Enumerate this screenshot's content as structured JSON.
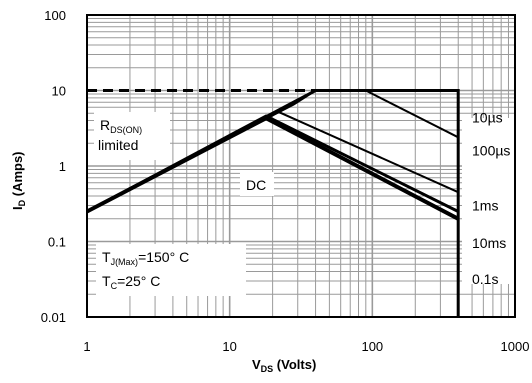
{
  "chart_data": {
    "type": "line",
    "title": "",
    "x_scale": "log",
    "y_scale": "log",
    "xlim": [
      1,
      1000
    ],
    "ylim": [
      0.01,
      100
    ],
    "grid": true,
    "x_ticks": [
      "1",
      "10",
      "100",
      "1000"
    ],
    "y_ticks": [
      "100",
      "10",
      "1",
      "0.1",
      "0.01"
    ],
    "xlabel": {
      "main": "V",
      "sub": "DS",
      "rest": " (Volts)"
    },
    "ylabel": {
      "main": "I",
      "sub": "D",
      "rest": " (Amps)"
    },
    "series": [
      {
        "name": "10µs",
        "x": [
          1,
          40,
          400,
          400
        ],
        "y": [
          0.25,
          10,
          10,
          0.01
        ]
      },
      {
        "name": "100µs",
        "x": [
          1,
          28,
          40,
          90,
          400
        ],
        "y": [
          0.25,
          6.5,
          10,
          10,
          2.4
        ]
      },
      {
        "name": "1ms",
        "x": [
          1,
          22,
          400
        ],
        "y": [
          0.25,
          5.2,
          0.45
        ]
      },
      {
        "name": "10ms",
        "x": [
          1,
          18,
          400
        ],
        "y": [
          0.25,
          4.6,
          0.25
        ]
      },
      {
        "name": "DC",
        "x": [
          1,
          18,
          400
        ],
        "y": [
          0.25,
          4.3,
          0.2
        ]
      }
    ],
    "current_limit": {
      "x": [
        1,
        40
      ],
      "y": [
        10,
        10
      ],
      "style": "dashed"
    },
    "annotations": {
      "rds_line1_main": "R",
      "rds_line1_sub": "DS(ON)",
      "rds_line2": "limited",
      "dc_label": "DC",
      "tj_main": "T",
      "tj_sub": "J(Max)",
      "tj_value": "=150° C",
      "tc_main": "T",
      "tc_sub": "C",
      "tc_value": "=25° C"
    },
    "legend_labels": [
      {
        "text": "10µs",
        "y": 4.4
      },
      {
        "text": "100µs",
        "y": 1.6
      },
      {
        "text": "1ms",
        "y": 0.3
      },
      {
        "text": "10ms",
        "y": 0.095
      },
      {
        "text": "0.1s",
        "y": 0.032
      }
    ]
  }
}
